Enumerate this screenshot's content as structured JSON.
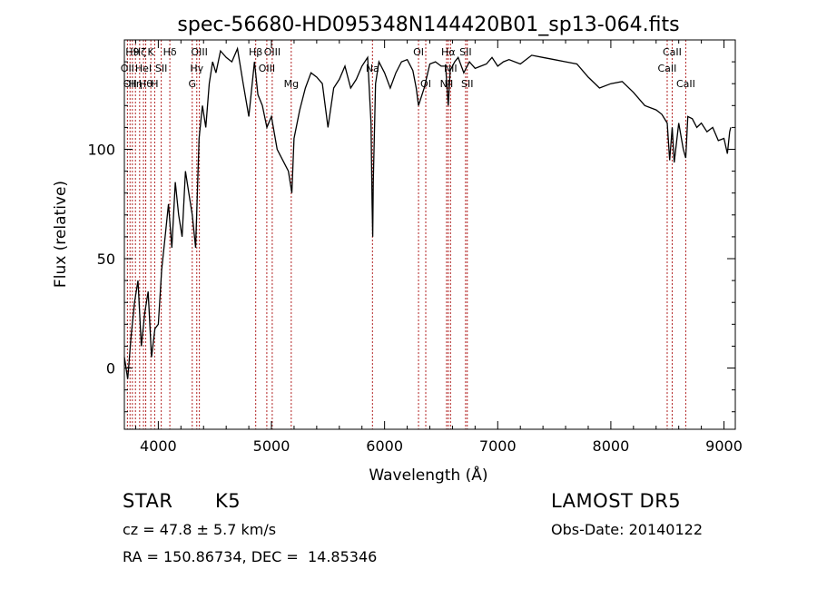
{
  "chart_data": {
    "type": "line",
    "title": "spec-56680-HD095348N144420B01_sp13-064.fits",
    "xlabel": "Wavelength (Å)",
    "ylabel": "Flux (relative)",
    "xlim": [
      3700,
      9100
    ],
    "ylim": [
      -28,
      150
    ],
    "xticks": [
      4000,
      5000,
      6000,
      7000,
      8000,
      9000
    ],
    "yticks": [
      0,
      50,
      100
    ],
    "grid": false,
    "line_color": "#000000",
    "marker_color": "#b22222",
    "series": [
      {
        "x": [
          3700,
          3730,
          3760,
          3790,
          3820,
          3850,
          3880,
          3910,
          3940,
          3970,
          4000,
          4030,
          4060,
          4090,
          4120,
          4150,
          4180,
          4210,
          4240,
          4270,
          4300,
          4330,
          4360,
          4390,
          4420,
          4450,
          4480,
          4510,
          4550,
          4600,
          4650,
          4700,
          4750,
          4800,
          4850,
          4880,
          4920,
          4960,
          5000,
          5050,
          5100,
          5150,
          5180,
          5200,
          5250,
          5300,
          5350,
          5400,
          5450,
          5500,
          5550,
          5600,
          5650,
          5700,
          5750,
          5800,
          5850,
          5880,
          5890,
          5895,
          5900,
          5920,
          5950,
          6000,
          6050,
          6100,
          6150,
          6200,
          6250,
          6280,
          6300,
          6350,
          6400,
          6450,
          6500,
          6540,
          6563,
          6580,
          6620,
          6650,
          6700,
          6750,
          6800,
          6850,
          6900,
          6950,
          7000,
          7050,
          7100,
          7200,
          7300,
          7400,
          7500,
          7600,
          7700,
          7800,
          7900,
          8000,
          8100,
          8200,
          8300,
          8400,
          8450,
          8498,
          8520,
          8542,
          8560,
          8600,
          8640,
          8662,
          8680,
          8720,
          8760,
          8800,
          8850,
          8900,
          8950,
          9000,
          9030,
          9050,
          9060
        ],
        "y": [
          5,
          -5,
          15,
          30,
          40,
          10,
          25,
          35,
          5,
          18,
          20,
          45,
          60,
          75,
          55,
          85,
          70,
          60,
          90,
          80,
          70,
          55,
          105,
          120,
          110,
          130,
          140,
          135,
          145,
          142,
          140,
          146,
          130,
          115,
          140,
          125,
          120,
          110,
          115,
          100,
          95,
          90,
          80,
          105,
          118,
          128,
          135,
          133,
          130,
          110,
          128,
          132,
          138,
          128,
          132,
          138,
          142,
          112,
          75,
          60,
          85,
          130,
          140,
          135,
          128,
          135,
          140,
          141,
          136,
          128,
          120,
          128,
          139,
          140,
          138,
          138,
          120,
          136,
          140,
          142,
          135,
          140,
          137,
          138,
          139,
          142,
          138,
          140,
          141,
          139,
          143,
          142,
          141,
          140,
          139,
          133,
          128,
          130,
          131,
          126,
          120,
          118,
          116,
          112,
          95,
          110,
          94,
          112,
          100,
          96,
          115,
          114,
          110,
          112,
          108,
          110,
          104,
          105,
          98,
          108,
          110
        ]
      }
    ],
    "line_markers": [
      {
        "x": 3727,
        "label": "OII",
        "row": 2
      },
      {
        "x": 3750,
        "label": "OII",
        "row": 3
      },
      {
        "x": 3771,
        "label": "H9",
        "row": 1
      },
      {
        "x": 3798,
        "label": "Hη",
        "row": 3
      },
      {
        "x": 3835,
        "label": "Hζ",
        "row": 1
      },
      {
        "x": 3869,
        "label": "HeI",
        "row": 2
      },
      {
        "x": 3889,
        "label": "Hθ",
        "row": 3
      },
      {
        "x": 3934,
        "label": "K",
        "row": 1
      },
      {
        "x": 3968,
        "label": "H",
        "row": 3
      },
      {
        "x": 4026,
        "label": "SII",
        "row": 2
      },
      {
        "x": 4102,
        "label": "Hδ",
        "row": 1
      },
      {
        "x": 4300,
        "label": "G",
        "row": 3
      },
      {
        "x": 4340,
        "label": "Hγ",
        "row": 2
      },
      {
        "x": 4363,
        "label": "OIII",
        "row": 1
      },
      {
        "x": 4861,
        "label": "Hβ",
        "row": 1
      },
      {
        "x": 4959,
        "label": "OIII",
        "row": 2
      },
      {
        "x": 5007,
        "label": "OIII",
        "row": 1
      },
      {
        "x": 5175,
        "label": "Mg",
        "row": 3
      },
      {
        "x": 5893,
        "label": "Na",
        "row": 2
      },
      {
        "x": 6300,
        "label": "OI",
        "row": 1
      },
      {
        "x": 6364,
        "label": "OI",
        "row": 3
      },
      {
        "x": 6548,
        "label": "NII",
        "row": 3
      },
      {
        "x": 6563,
        "label": "Hα",
        "row": 1
      },
      {
        "x": 6583,
        "label": "NII",
        "row": 2
      },
      {
        "x": 6716,
        "label": "SII",
        "row": 1
      },
      {
        "x": 6731,
        "label": "SII",
        "row": 3
      },
      {
        "x": 8498,
        "label": "CaII",
        "row": 2
      },
      {
        "x": 8542,
        "label": "CaII",
        "row": 1
      },
      {
        "x": 8662,
        "label": "CaII",
        "row": 3
      }
    ]
  },
  "info": {
    "class": "STAR",
    "subclass": "K5",
    "cz": "cz = 47.8 ± 5.7 km/s",
    "coords": "RA = 150.86734, DEC =  14.85346",
    "survey": "LAMOST DR5",
    "obs_date": "Obs-Date: 20140122"
  }
}
